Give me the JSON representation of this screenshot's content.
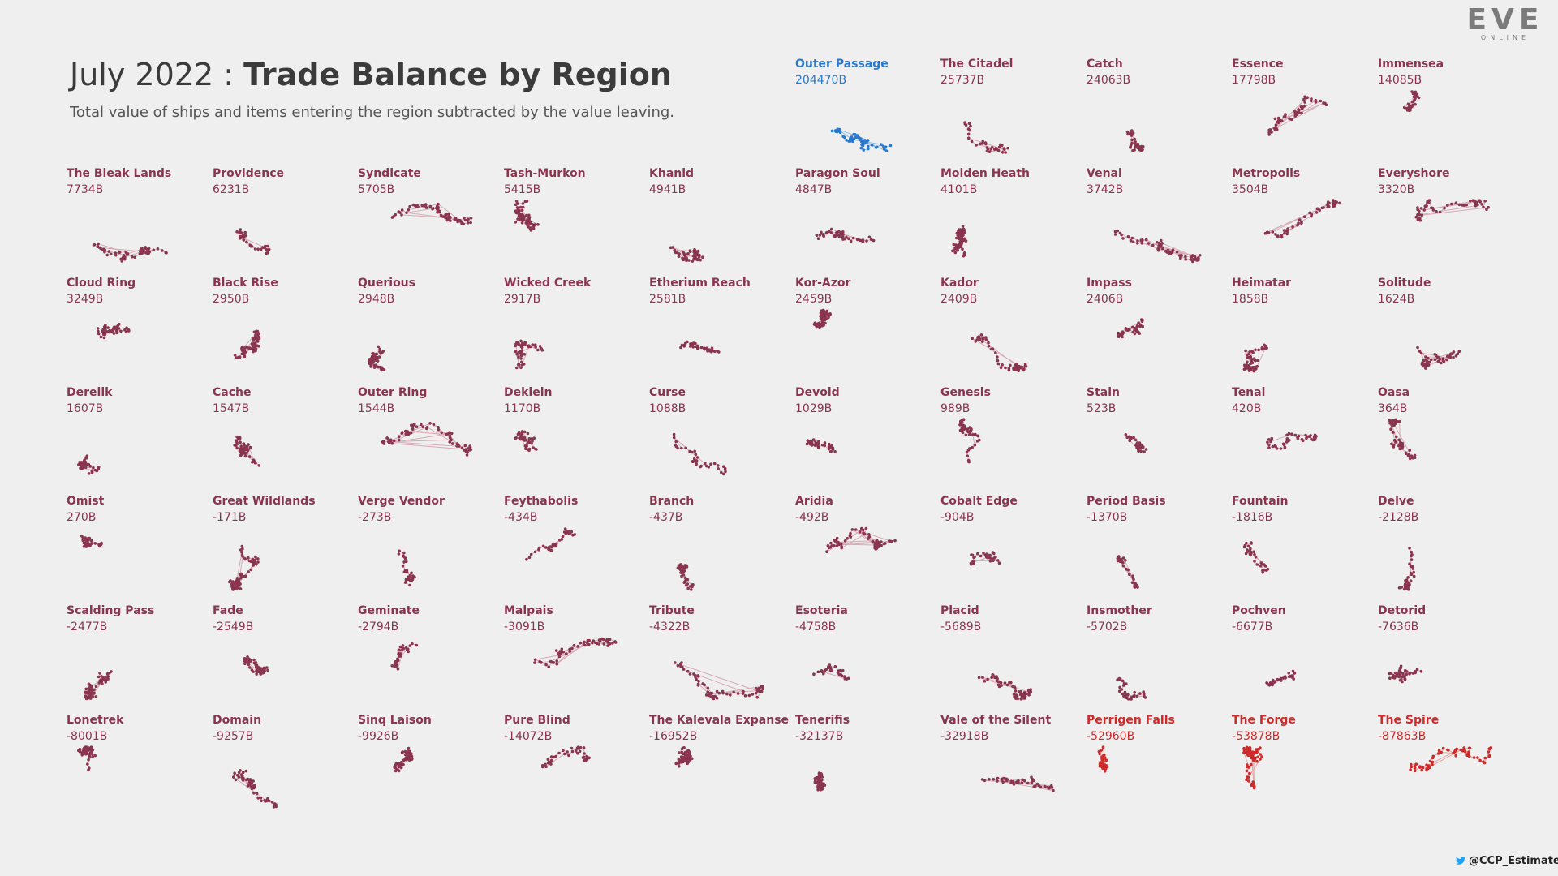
{
  "logo": {
    "main": "EVE",
    "sub": "ONLINE"
  },
  "header": {
    "month": "July 2022",
    "separator": " : ",
    "title": "Trade Balance by Region",
    "subtitle": "Total value of ships and items entering the region subtracted by the value leaving."
  },
  "credit": {
    "handle": "@CCP_Estimate",
    "icon": "twitter-bird-icon"
  },
  "colors": {
    "positive_top": "#2a78cc",
    "default": "#8a3550",
    "negative_strong": "#cf2a2a",
    "text": "#3b3b3b"
  },
  "chart_data": {
    "type": "small-multiples",
    "unit": "B",
    "regions": [
      {
        "name": "Outer Passage",
        "label": "204470B",
        "value": 204470
      },
      {
        "name": "The Citadel",
        "label": "25737B",
        "value": 25737
      },
      {
        "name": "Catch",
        "label": "24063B",
        "value": 24063
      },
      {
        "name": "Essence",
        "label": "17798B",
        "value": 17798
      },
      {
        "name": "Immensea",
        "label": "14085B",
        "value": 14085
      },
      {
        "name": "The Bleak Lands",
        "label": "7734B",
        "value": 7734
      },
      {
        "name": "Providence",
        "label": "6231B",
        "value": 6231
      },
      {
        "name": "Syndicate",
        "label": "5705B",
        "value": 5705
      },
      {
        "name": "Tash-Murkon",
        "label": "5415B",
        "value": 5415
      },
      {
        "name": "Khanid",
        "label": "4941B",
        "value": 4941
      },
      {
        "name": "Paragon Soul",
        "label": "4847B",
        "value": 4847
      },
      {
        "name": "Molden Heath",
        "label": "4101B",
        "value": 4101
      },
      {
        "name": "Venal",
        "label": "3742B",
        "value": 3742
      },
      {
        "name": "Metropolis",
        "label": "3504B",
        "value": 3504
      },
      {
        "name": "Everyshore",
        "label": "3320B",
        "value": 3320
      },
      {
        "name": "Cloud Ring",
        "label": "3249B",
        "value": 3249
      },
      {
        "name": "Black Rise",
        "label": "2950B",
        "value": 2950
      },
      {
        "name": "Querious",
        "label": "2948B",
        "value": 2948
      },
      {
        "name": "Wicked Creek",
        "label": "2917B",
        "value": 2917
      },
      {
        "name": "Etherium Reach",
        "label": "2581B",
        "value": 2581
      },
      {
        "name": "Kor-Azor",
        "label": "2459B",
        "value": 2459
      },
      {
        "name": "Kador",
        "label": "2409B",
        "value": 2409
      },
      {
        "name": "Impass",
        "label": "2406B",
        "value": 2406
      },
      {
        "name": "Heimatar",
        "label": "1858B",
        "value": 1858
      },
      {
        "name": "Solitude",
        "label": "1624B",
        "value": 1624
      },
      {
        "name": "Derelik",
        "label": "1607B",
        "value": 1607
      },
      {
        "name": "Cache",
        "label": "1547B",
        "value": 1547
      },
      {
        "name": "Outer Ring",
        "label": "1544B",
        "value": 1544
      },
      {
        "name": "Deklein",
        "label": "1170B",
        "value": 1170
      },
      {
        "name": "Curse",
        "label": "1088B",
        "value": 1088
      },
      {
        "name": "Devoid",
        "label": "1029B",
        "value": 1029
      },
      {
        "name": "Genesis",
        "label": "989B",
        "value": 989
      },
      {
        "name": "Stain",
        "label": "523B",
        "value": 523
      },
      {
        "name": "Tenal",
        "label": "420B",
        "value": 420
      },
      {
        "name": "Oasa",
        "label": "364B",
        "value": 364
      },
      {
        "name": "Omist",
        "label": "270B",
        "value": 270
      },
      {
        "name": "Great Wildlands",
        "label": "-171B",
        "value": -171
      },
      {
        "name": "Verge Vendor",
        "label": "-273B",
        "value": -273
      },
      {
        "name": "Feythabolis",
        "label": "-434B",
        "value": -434
      },
      {
        "name": "Branch",
        "label": "-437B",
        "value": -437
      },
      {
        "name": "Aridia",
        "label": "-492B",
        "value": -492
      },
      {
        "name": "Cobalt Edge",
        "label": "-904B",
        "value": -904
      },
      {
        "name": "Period Basis",
        "label": "-1370B",
        "value": -1370
      },
      {
        "name": "Fountain",
        "label": "-1816B",
        "value": -1816
      },
      {
        "name": "Delve",
        "label": "-2128B",
        "value": -2128
      },
      {
        "name": "Scalding Pass",
        "label": "-2477B",
        "value": -2477
      },
      {
        "name": "Fade",
        "label": "-2549B",
        "value": -2549
      },
      {
        "name": "Geminate",
        "label": "-2794B",
        "value": -2794
      },
      {
        "name": "Malpais",
        "label": "-3091B",
        "value": -3091
      },
      {
        "name": "Tribute",
        "label": "-4322B",
        "value": -4322
      },
      {
        "name": "Esoteria",
        "label": "-4758B",
        "value": -4758
      },
      {
        "name": "Placid",
        "label": "-5689B",
        "value": -5689
      },
      {
        "name": "Insmother",
        "label": "-5702B",
        "value": -5702
      },
      {
        "name": "Pochven",
        "label": "-6677B",
        "value": -6677
      },
      {
        "name": "Detorid",
        "label": "-7636B",
        "value": -7636
      },
      {
        "name": "Lonetrek",
        "label": "-8001B",
        "value": -8001
      },
      {
        "name": "Domain",
        "label": "-9257B",
        "value": -9257
      },
      {
        "name": "Sinq Laison",
        "label": "-9926B",
        "value": -9926
      },
      {
        "name": "Pure Blind",
        "label": "-14072B",
        "value": -14072
      },
      {
        "name": "The Kalevala Expanse",
        "label": "-16952B",
        "value": -16952
      },
      {
        "name": "Tenerifis",
        "label": "-32137B",
        "value": -32137
      },
      {
        "name": "Vale of the Silent",
        "label": "-32918B",
        "value": -32918
      },
      {
        "name": "Perrigen Falls",
        "label": "-52960B",
        "value": -52960
      },
      {
        "name": "The Forge",
        "label": "-53878B",
        "value": -53878
      },
      {
        "name": "The Spire",
        "label": "-87863B",
        "value": -87863
      }
    ]
  }
}
